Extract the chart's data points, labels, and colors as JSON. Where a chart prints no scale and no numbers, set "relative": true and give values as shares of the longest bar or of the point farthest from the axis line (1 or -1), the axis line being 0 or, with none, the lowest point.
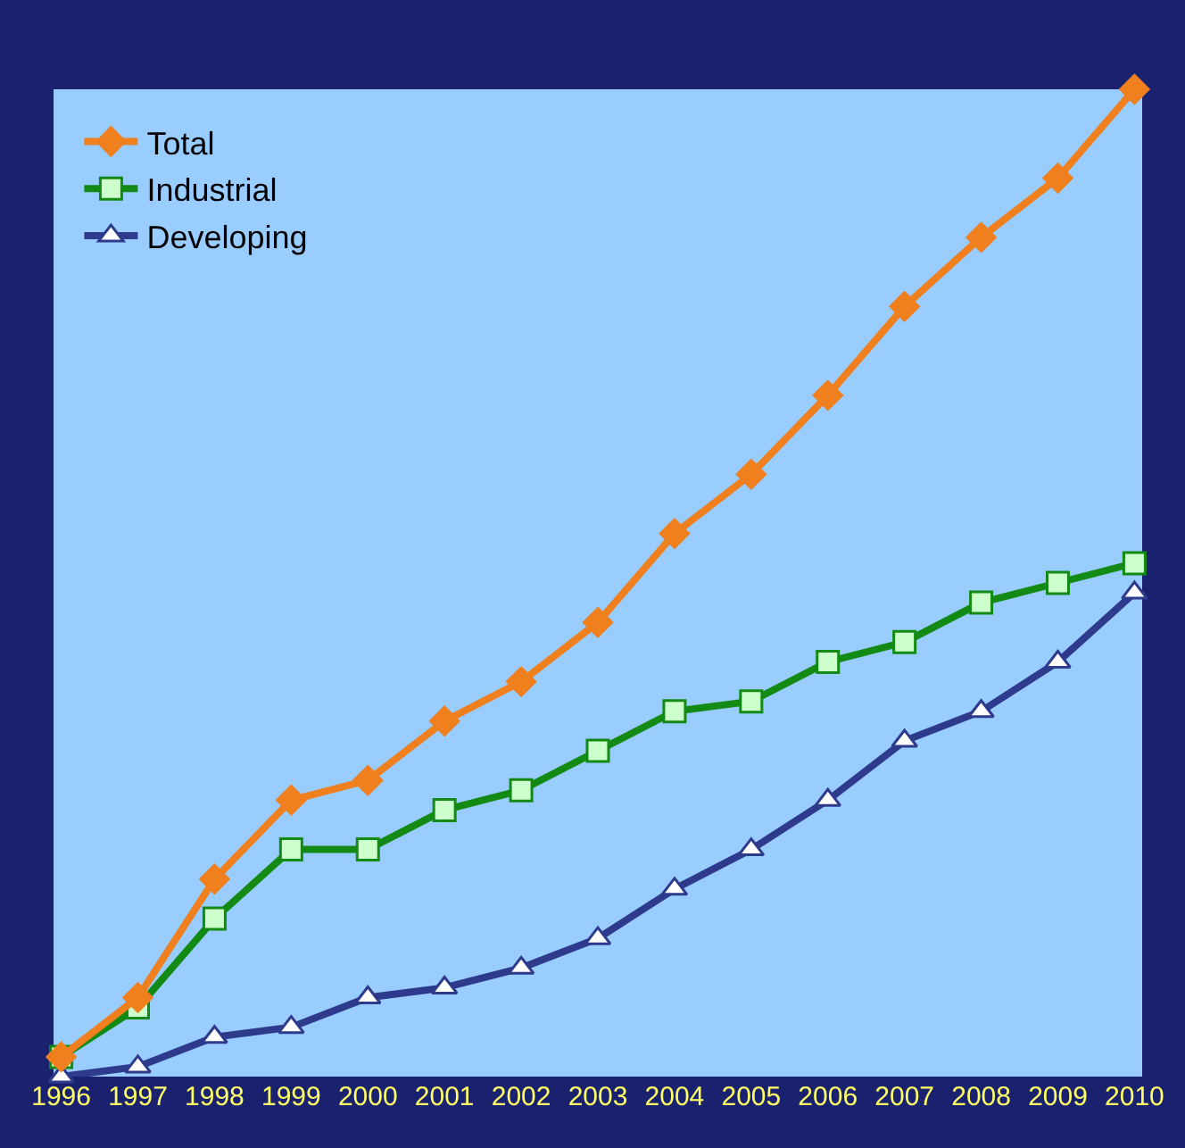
{
  "chart_data": {
    "type": "line",
    "relative": true,
    "legend": "top left",
    "grid": false,
    "categories": [
      "1996",
      "1997",
      "1998",
      "1999",
      "2000",
      "2001",
      "2002",
      "2003",
      "2004",
      "2005",
      "2006",
      "2007",
      "2008",
      "2009",
      "2010"
    ],
    "series": [
      {
        "name": "Total",
        "color": "#f07f1e",
        "marker": "diamond",
        "values": [
          0.02,
          0.08,
          0.2,
          0.28,
          0.3,
          0.36,
          0.4,
          0.46,
          0.55,
          0.61,
          0.69,
          0.78,
          0.85,
          0.91,
          1
        ]
      },
      {
        "name": "Industrial",
        "color": "#138a13",
        "marker": "square",
        "values": [
          0.02,
          0.07,
          0.16,
          0.23,
          0.23,
          0.27,
          0.29,
          0.33,
          0.37,
          0.38,
          0.42,
          0.44,
          0.48,
          0.5,
          0.52
        ]
      },
      {
        "name": "Developing",
        "color": "#2e3a8c",
        "marker": "triangle",
        "values": [
          0,
          0.01,
          0.04,
          0.05,
          0.08,
          0.09,
          0.11,
          0.14,
          0.19,
          0.23,
          0.28,
          0.34,
          0.37,
          0.42,
          0.49
        ]
      }
    ]
  }
}
